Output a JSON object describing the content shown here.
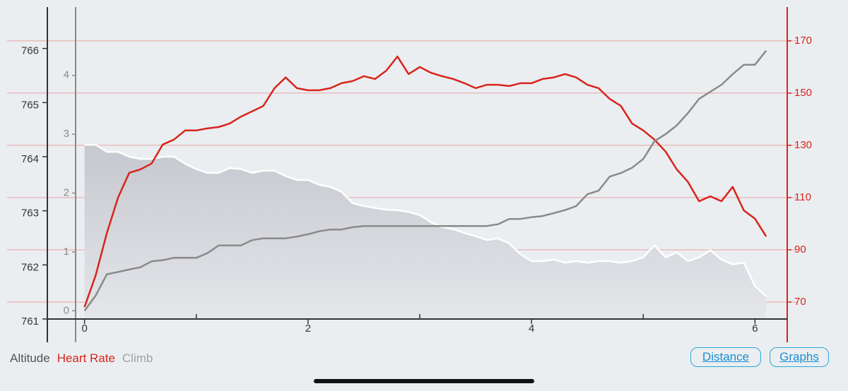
{
  "chart_data": {
    "type": "line",
    "x": [
      0,
      0.1,
      0.2,
      0.3,
      0.4,
      0.5,
      0.6,
      0.7,
      0.8,
      0.9,
      1.0,
      1.1,
      1.2,
      1.3,
      1.4,
      1.5,
      1.6,
      1.7,
      1.8,
      1.9,
      2.0,
      2.1,
      2.2,
      2.3,
      2.4,
      2.5,
      2.6,
      2.7,
      2.8,
      2.9,
      3.0,
      3.1,
      3.2,
      3.3,
      3.4,
      3.5,
      3.6,
      3.7,
      3.8,
      3.9,
      4.0,
      4.1,
      4.2,
      4.3,
      4.4,
      4.5,
      4.6,
      4.7,
      4.8,
      4.9,
      5.0,
      5.1,
      5.2,
      5.3,
      5.4,
      5.5,
      5.6,
      5.7,
      5.8,
      5.9,
      6.0,
      6.1
    ],
    "xlim": [
      -0.08,
      6.2
    ],
    "xticks": [
      0,
      2,
      4,
      6
    ],
    "xminorticks": [
      1,
      3,
      5
    ],
    "ylim": [
      761,
      766.7
    ],
    "yticks": [
      761,
      762,
      763,
      764,
      765,
      766
    ],
    "ycolor": "#333333",
    "y2lim": [
      63.5,
      181.6
    ],
    "y2ticks": [
      70,
      90,
      110,
      130,
      150,
      170
    ],
    "y2color": "#d9241c",
    "y3lim": [
      -0.14,
      5.1
    ],
    "y3ticks": [
      0,
      1,
      2,
      3,
      4
    ],
    "y3color": "#8a8a8a",
    "grid": "y2",
    "grid_color": "#eaa3a3",
    "series": [
      {
        "name": "Altitude",
        "color": "#ffffff",
        "fill": "#cfd1d7",
        "label_color": "#555555",
        "values": [
          764.22,
          764.22,
          764.09,
          764.09,
          764.0,
          763.96,
          763.96,
          764.0,
          764.0,
          763.87,
          763.77,
          763.7,
          763.7,
          763.79,
          763.77,
          763.7,
          763.74,
          763.74,
          763.64,
          763.57,
          763.57,
          763.48,
          763.44,
          763.35,
          763.14,
          763.09,
          763.05,
          763.02,
          763.01,
          762.98,
          762.92,
          762.79,
          762.7,
          762.66,
          762.59,
          762.53,
          762.46,
          762.49,
          762.4,
          762.2,
          762.07,
          762.07,
          762.1,
          762.04,
          762.07,
          762.04,
          762.07,
          762.07,
          762.04,
          762.07,
          762.14,
          762.36,
          762.14,
          762.23,
          762.07,
          762.14,
          762.27,
          762.1,
          762.01,
          762.04,
          761.61,
          761.42
        ]
      },
      {
        "name": "Heart Rate",
        "color": "#d9241c",
        "label_color": "#d9241c",
        "axis": "y2",
        "values": [
          68.1,
          80.3,
          96.5,
          110,
          119.5,
          120.8,
          123,
          130.3,
          132.2,
          135.7,
          135.7,
          136.5,
          137,
          138.4,
          141,
          143,
          145.1,
          151.9,
          156,
          151.9,
          151.1,
          151.1,
          151.9,
          153.8,
          154.6,
          156.5,
          155.4,
          158.6,
          164,
          157.3,
          160,
          157.8,
          156.5,
          155.4,
          153.8,
          151.9,
          153.2,
          153.2,
          152.7,
          153.8,
          153.8,
          155.4,
          156,
          157.3,
          156,
          153.2,
          151.9,
          147.8,
          145.1,
          138.4,
          135.7,
          132.2,
          127.6,
          120.8,
          116,
          108.6,
          110.5,
          108.6,
          114.1,
          105.1,
          101.9,
          95.1
        ]
      },
      {
        "name": "Climb",
        "color": "#8a8a8a",
        "label_color": "#a0a0a0",
        "axis": "y3",
        "values": [
          0,
          0.26,
          0.62,
          0.66,
          0.7,
          0.74,
          0.84,
          0.86,
          0.9,
          0.9,
          0.9,
          0.98,
          1.11,
          1.11,
          1.11,
          1.2,
          1.23,
          1.23,
          1.23,
          1.26,
          1.3,
          1.35,
          1.38,
          1.38,
          1.42,
          1.44,
          1.44,
          1.44,
          1.44,
          1.44,
          1.44,
          1.44,
          1.44,
          1.44,
          1.44,
          1.44,
          1.44,
          1.47,
          1.56,
          1.56,
          1.59,
          1.61,
          1.66,
          1.71,
          1.78,
          1.98,
          2.04,
          2.28,
          2.34,
          2.43,
          2.58,
          2.88,
          3.0,
          3.15,
          3.36,
          3.6,
          3.72,
          3.84,
          4.02,
          4.18,
          4.18,
          4.42
        ]
      }
    ]
  },
  "buttons": [
    "Distance",
    "Graphs"
  ]
}
